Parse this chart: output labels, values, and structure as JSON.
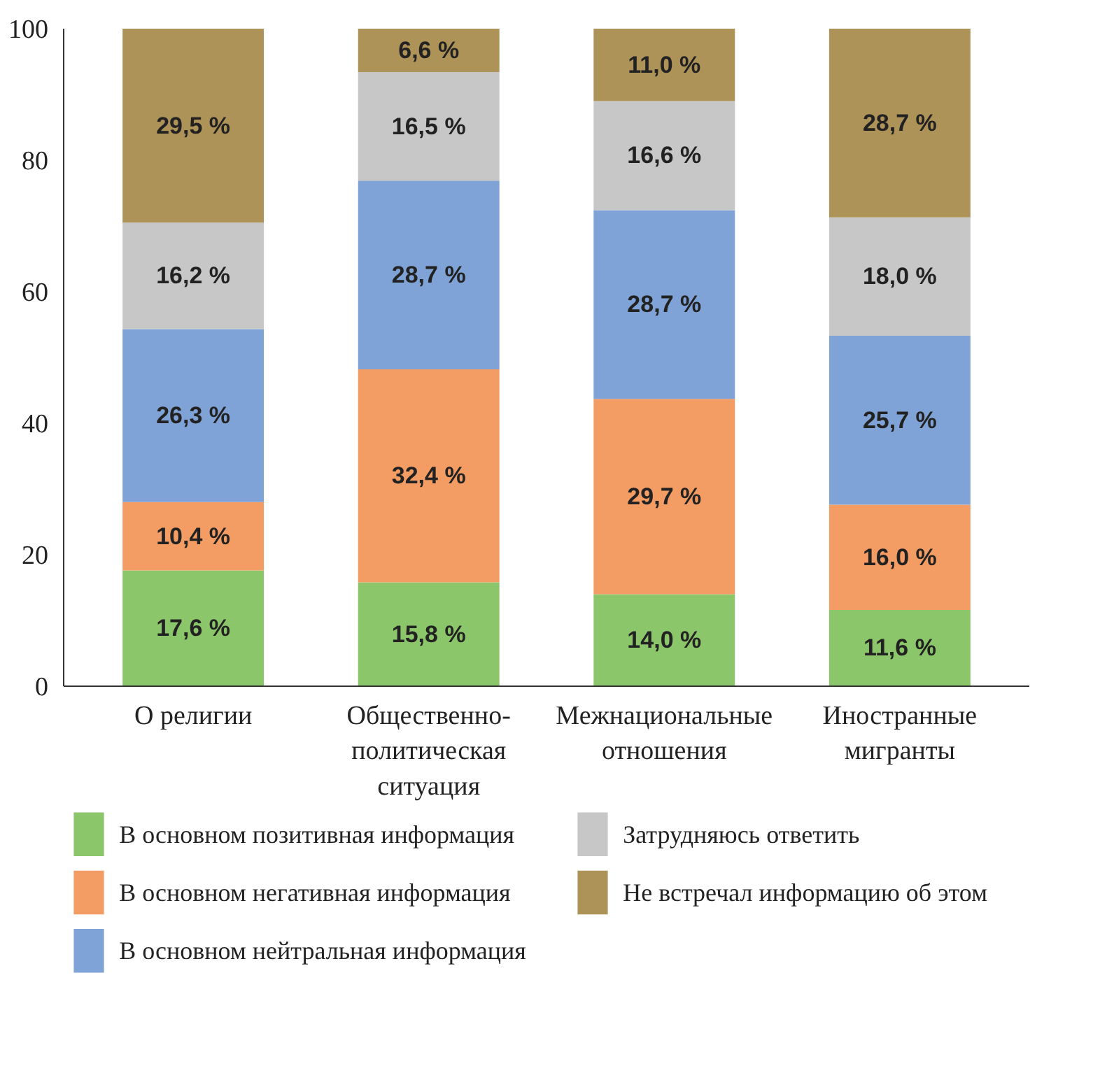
{
  "chart_data": {
    "type": "bar",
    "stacked": true,
    "categories": [
      "О религии",
      "Общественно-политическая ситуация",
      "Межнациональные отношения",
      "Иностранные мигранты"
    ],
    "series": [
      {
        "name": "В основном позитивная информация",
        "color": "#8cc66a",
        "values": [
          17.6,
          15.8,
          14.0,
          11.6
        ],
        "value_labels": [
          "17,6 %",
          "15,8 %",
          "14,0 %",
          "11,6 %"
        ]
      },
      {
        "name": "В основном негативная информация",
        "color": "#f39c64",
        "values": [
          10.4,
          32.4,
          29.7,
          16.0
        ],
        "value_labels": [
          "10,4 %",
          "32,4 %",
          "29,7 %",
          "16,0 %"
        ]
      },
      {
        "name": "В основном нейтральная информация",
        "color": "#7fa3d6",
        "values": [
          26.3,
          28.7,
          28.7,
          25.7
        ],
        "value_labels": [
          "26,3 %",
          "28,7 %",
          "28,7 %",
          "25,7 %"
        ]
      },
      {
        "name": "Затрудняюсь ответить",
        "color": "#c7c7c7",
        "values": [
          16.2,
          16.5,
          16.6,
          18.0
        ],
        "value_labels": [
          "16,2 %",
          "16,5 %",
          "16,6 %",
          "18,0 %"
        ]
      },
      {
        "name": "Не встречал информацию об этом",
        "color": "#ae9358",
        "values": [
          29.5,
          6.6,
          11.0,
          28.7
        ],
        "value_labels": [
          "29,5 %",
          "6,6 %",
          "11,0 %",
          "28,7 %"
        ]
      }
    ],
    "ylim": [
      0,
      100
    ],
    "yticks": [
      0,
      20,
      40,
      60,
      80,
      100
    ],
    "grid": false,
    "legend": "bottom"
  }
}
